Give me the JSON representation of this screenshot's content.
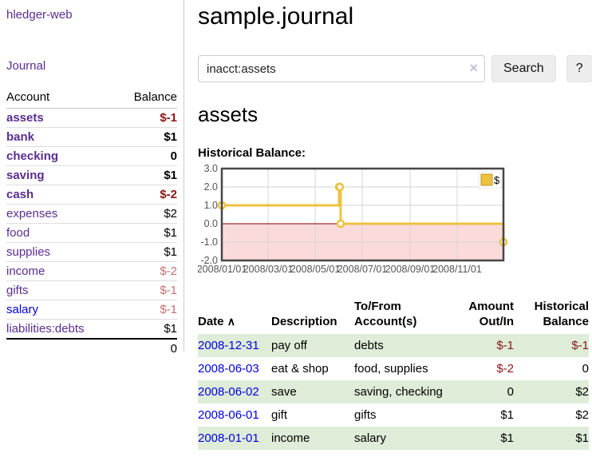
{
  "sidebar": {
    "app_title": "hledger-web",
    "journal_link": "Journal",
    "accounts_table": {
      "header_account": "Account",
      "header_balance": "Balance",
      "rows": [
        {
          "name": "assets",
          "indent": 1,
          "bold": true,
          "balance": "$-1",
          "balance_style": "neg-strong",
          "link_style": "purple"
        },
        {
          "name": "bank",
          "indent": 2,
          "bold": true,
          "balance": "$1",
          "balance_style": "pos",
          "link_style": "purple"
        },
        {
          "name": "checking",
          "indent": 3,
          "bold": true,
          "balance": "0",
          "balance_style": "pos",
          "link_style": "purple"
        },
        {
          "name": "saving",
          "indent": 3,
          "bold": true,
          "balance": "$1",
          "balance_style": "pos",
          "link_style": "purple"
        },
        {
          "name": "cash",
          "indent": 2,
          "bold": true,
          "balance": "$-2",
          "balance_style": "neg-strong",
          "link_style": "purple"
        },
        {
          "name": "expenses",
          "indent": 1,
          "bold": false,
          "balance": "$2",
          "balance_style": "pos",
          "link_style": "purple"
        },
        {
          "name": "food",
          "indent": 2,
          "bold": false,
          "balance": "$1",
          "balance_style": "pos",
          "link_style": "purple"
        },
        {
          "name": "supplies",
          "indent": 2,
          "bold": false,
          "balance": "$1",
          "balance_style": "pos",
          "link_style": "purple"
        },
        {
          "name": "income",
          "indent": 1,
          "bold": false,
          "balance": "$-2",
          "balance_style": "neg-muted",
          "link_style": "purple"
        },
        {
          "name": "gifts",
          "indent": 2,
          "bold": false,
          "balance": "$-1",
          "balance_style": "neg-muted",
          "link_style": "purple"
        },
        {
          "name": "salary",
          "indent": 2,
          "bold": false,
          "balance": "$-1",
          "balance_style": "neg-muted",
          "link_style": "blue"
        },
        {
          "name": "liabilities:debts",
          "indent": 1,
          "bold": false,
          "balance": "$1",
          "balance_style": "pos",
          "link_style": "purple"
        }
      ],
      "total": "0"
    }
  },
  "header": {
    "title": "sample.journal"
  },
  "search": {
    "value": "inacct:assets",
    "clear_icon": "×",
    "search_button": "Search",
    "help_button": "?"
  },
  "main": {
    "account_heading": "assets",
    "chart_title": "Historical Balance:"
  },
  "chart_data": {
    "type": "line",
    "steps": true,
    "series": [
      {
        "name": "$",
        "color": "#edc240",
        "points": [
          [
            "2008-01-01",
            1
          ],
          [
            "2008-06-01",
            2
          ],
          [
            "2008-06-02",
            2
          ],
          [
            "2008-06-03",
            0
          ],
          [
            "2008-12-31",
            -1
          ]
        ]
      }
    ],
    "xlim": [
      "2008-01-01",
      "2008-12-31"
    ],
    "ylim": [
      -2,
      3
    ],
    "y_ticks": [
      3.0,
      2.0,
      1.0,
      0.0,
      -1.0,
      -2.0
    ],
    "y_tick_labels": [
      "3.0",
      "2.0",
      "1.0",
      "0.0",
      "-1.0",
      "-2.0"
    ],
    "x_ticks": [
      "2008-01-01",
      "2008-03-01",
      "2008-05-01",
      "2008-07-01",
      "2008-09-01",
      "2008-11-01"
    ],
    "x_tick_labels": [
      "2008/01/01",
      "2008/03/01",
      "2008/05/01",
      "2008/07/01",
      "2008/09/01",
      "2008/11/01"
    ],
    "grid": true,
    "negative_fill": "#fbdada",
    "zero_line_color": "#8b0000",
    "border_color": "#474747",
    "tick_label_color": "#545454",
    "legend": {
      "position": "top-right",
      "entries": [
        "$"
      ],
      "swatch_color": "#edc240"
    }
  },
  "register_table": {
    "header_date": "Date",
    "sort_icon": "∧",
    "header_description": "Description",
    "header_accounts": "To/From Account(s)",
    "header_amount": "Amount Out/In",
    "header_balance": "Historical Balance",
    "rows": [
      {
        "date": "2008-12-31",
        "description": "pay off",
        "accounts": "debts",
        "amount": "$-1",
        "amount_neg": true,
        "balance": "$-1",
        "balance_neg": true,
        "stripe": true
      },
      {
        "date": "2008-06-03",
        "description": "eat & shop",
        "accounts": "food, supplies",
        "amount": "$-2",
        "amount_neg": true,
        "balance": "0",
        "balance_neg": false,
        "stripe": false
      },
      {
        "date": "2008-06-02",
        "description": "save",
        "accounts": "saving, checking",
        "amount": "0",
        "amount_neg": false,
        "balance": "$2",
        "balance_neg": false,
        "stripe": true
      },
      {
        "date": "2008-06-01",
        "description": "gift",
        "accounts": "gifts",
        "amount": "$1",
        "amount_neg": false,
        "balance": "$2",
        "balance_neg": false,
        "stripe": false
      },
      {
        "date": "2008-01-01",
        "description": "income",
        "accounts": "salary",
        "amount": "$1",
        "amount_neg": false,
        "balance": "$1",
        "balance_neg": false,
        "stripe": true
      }
    ]
  }
}
